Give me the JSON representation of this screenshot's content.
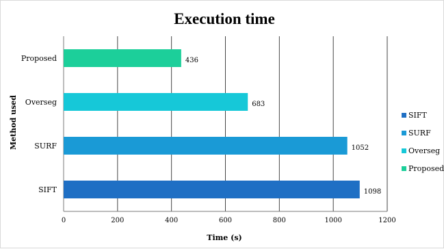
{
  "chart_data": {
    "type": "bar",
    "orientation": "horizontal",
    "title": "Execution time",
    "xlabel": "Time (s)",
    "ylabel": "Method used",
    "categories": [
      "SIFT",
      "SURF",
      "Overseg",
      "Proposed"
    ],
    "values": [
      1098,
      1052,
      683,
      436
    ],
    "colors": [
      "#1f6fc4",
      "#1a9ad6",
      "#16c8d8",
      "#1ccf9a"
    ],
    "xlim": [
      0,
      1200
    ],
    "xticks": [
      "0",
      "200",
      "400",
      "600",
      "800",
      "1000",
      "1200"
    ],
    "grid": true,
    "legend_position": "right",
    "legend": [
      "SIFT",
      "SURF",
      "Overseg",
      "Proposed"
    ]
  }
}
